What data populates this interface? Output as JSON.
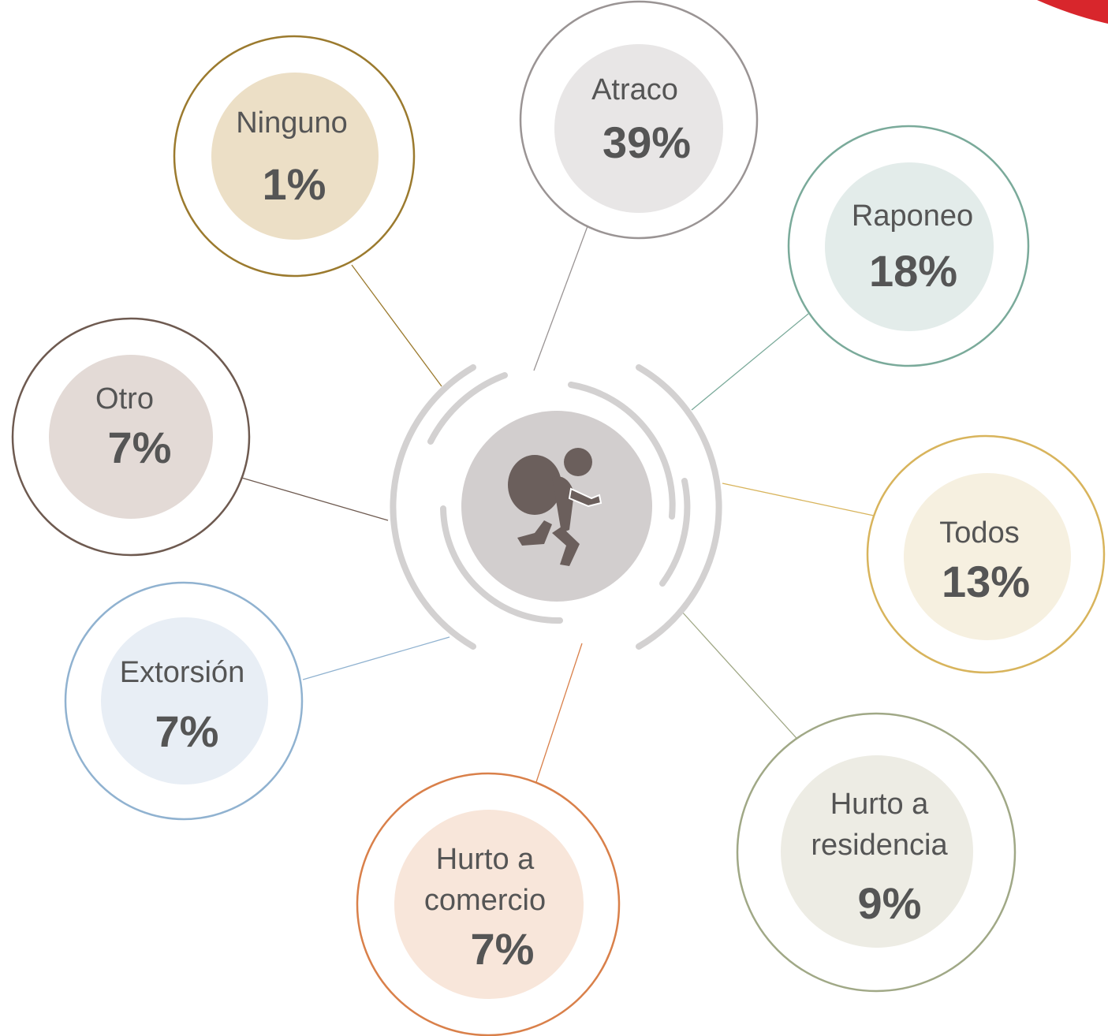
{
  "nodes": [
    {
      "label": [
        "Ninguno"
      ],
      "value": "1%"
    },
    {
      "label": [
        "Atraco"
      ],
      "value": "39%"
    },
    {
      "label": [
        "Raponeo"
      ],
      "value": "18%"
    },
    {
      "label": [
        "Todos"
      ],
      "value": "13%"
    },
    {
      "label": [
        "Hurto a",
        "residencia"
      ],
      "value": "9%"
    },
    {
      "label": [
        "Hurto a",
        "comercio"
      ],
      "value": "7%"
    },
    {
      "label": [
        "Extorsión"
      ],
      "value": "7%"
    },
    {
      "label": [
        "Otro"
      ],
      "value": "7%"
    }
  ]
}
